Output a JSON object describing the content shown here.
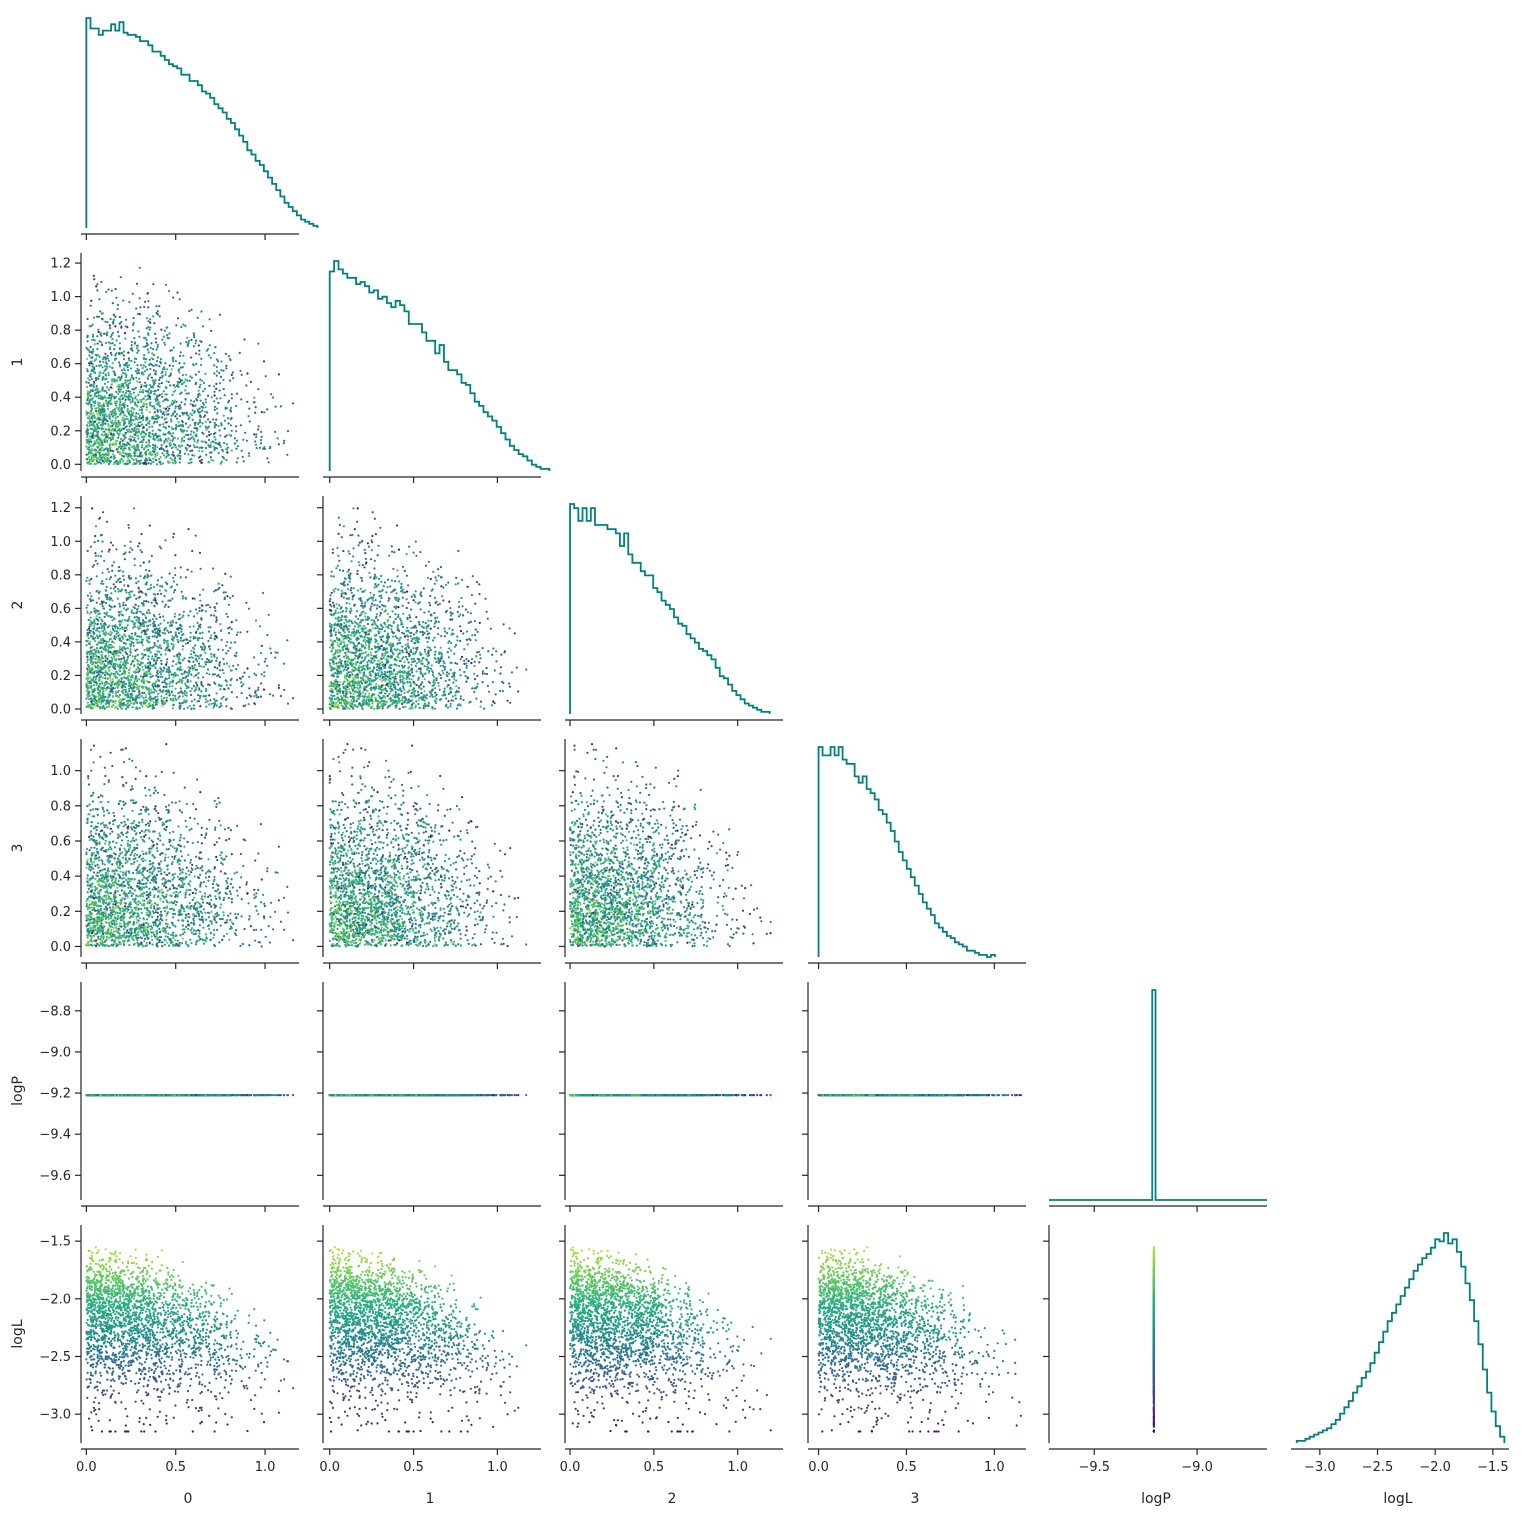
{
  "chart_data": {
    "type": "scatter",
    "layout": "corner",
    "variables": [
      "0",
      "1",
      "2",
      "3",
      "logP",
      "logL"
    ],
    "axis_labels": [
      "0",
      "1",
      "2",
      "3",
      "logP",
      "logL"
    ],
    "diag_color": "#008080",
    "colormap": "viridis",
    "color_variable": "logL",
    "sample_count": 2200,
    "ranges": {
      "0": [
        -0.03,
        1.19
      ],
      "1": [
        -0.04,
        1.26
      ],
      "2": [
        -0.03,
        1.27
      ],
      "3": [
        -0.06,
        1.18
      ],
      "logP": [
        -9.72,
        -8.66
      ],
      "logL": [
        -3.25,
        -1.36
      ]
    },
    "ticks": {
      "0": [
        0.0,
        0.5,
        1.0
      ],
      "1": [
        0.0,
        0.5,
        1.0
      ],
      "2": [
        0.0,
        0.5,
        1.0
      ],
      "3": [
        0.0,
        0.5,
        1.0
      ],
      "logP": [
        -9.5,
        -9.0
      ],
      "logL": [
        -3.0,
        -2.5,
        -2.0,
        -1.5
      ]
    },
    "tick_labels": {
      "0": [
        "0.0",
        "0.5",
        "1.0"
      ],
      "1": [
        "0.0",
        "0.5",
        "1.0"
      ],
      "2": [
        "0.0",
        "0.5",
        "1.0"
      ],
      "3": [
        "0.0",
        "0.5",
        "1.0"
      ],
      "logP": [
        "−9.5",
        "−9.0"
      ],
      "logL": [
        "−3.0",
        "−2.5",
        "−2.0",
        "−1.5"
      ]
    },
    "y_ticks": {
      "1": [
        0.0,
        0.2,
        0.4,
        0.6,
        0.8,
        1.0,
        1.2
      ],
      "2": [
        0.0,
        0.2,
        0.4,
        0.6,
        0.8,
        1.0,
        1.2
      ],
      "3": [
        0.0,
        0.2,
        0.4,
        0.6,
        0.8,
        1.0
      ],
      "logP": [
        -9.6,
        -9.4,
        -9.2,
        -9.0,
        -8.8
      ],
      "logL": [
        -3.0,
        -2.5,
        -2.0,
        -1.5
      ]
    },
    "y_tick_labels": {
      "1": [
        "0.0",
        "0.2",
        "0.4",
        "0.6",
        "0.8",
        "1.0",
        "1.2"
      ],
      "2": [
        "0.0",
        "0.2",
        "0.4",
        "0.6",
        "0.8",
        "1.0",
        "1.2"
      ],
      "3": [
        "0.0",
        "0.2",
        "0.4",
        "0.6",
        "0.8",
        "1.0"
      ],
      "logP": [
        "−9.6",
        "−9.4",
        "−9.2",
        "−9.0",
        "−8.8"
      ],
      "logL": [
        "−3.0",
        "−2.5",
        "−2.0",
        "−1.5"
      ]
    },
    "logP_value": -9.21,
    "histograms": {
      "0": {
        "bin_start": 0.0,
        "bin_width": 0.0231,
        "counts": [
          100,
          95,
          95,
          92,
          94,
          94,
          97,
          94,
          98,
          93,
          92,
          92,
          91,
          89,
          89,
          87,
          84,
          84,
          82,
          80,
          78,
          77,
          76,
          73,
          73,
          70,
          70,
          68,
          65,
          64,
          62,
          59,
          57,
          55,
          52,
          50,
          47,
          44,
          41,
          37,
          35,
          32,
          30,
          27,
          24,
          21,
          18,
          15,
          12,
          10,
          8,
          6,
          4,
          3,
          2,
          1
        ]
      },
      "1": {
        "bin_start": 0.0,
        "bin_width": 0.0262,
        "counts": [
          95,
          100,
          96,
          94,
          92,
          92,
          89,
          90,
          88,
          85,
          86,
          82,
          83,
          80,
          78,
          81,
          79,
          76,
          70,
          70,
          70,
          66,
          62,
          62,
          56,
          60,
          52,
          48,
          48,
          46,
          42,
          41,
          37,
          33,
          31,
          28,
          26,
          24,
          21,
          18,
          15,
          12,
          10,
          8,
          7,
          5,
          3,
          2,
          1,
          1
        ]
      },
      "2": {
        "bin_start": 0.0,
        "bin_width": 0.0248,
        "counts": [
          100,
          98,
          92,
          98,
          92,
          98,
          90,
          90,
          90,
          88,
          88,
          86,
          80,
          86,
          76,
          72,
          72,
          68,
          66,
          66,
          60,
          58,
          54,
          52,
          50,
          46,
          43,
          42,
          38,
          36,
          34,
          31,
          30,
          28,
          26,
          22,
          18,
          17,
          14,
          11,
          9,
          7,
          5,
          4,
          3,
          2,
          1,
          1
        ]
      },
      "3": {
        "bin_start": 0.0,
        "bin_width": 0.0228,
        "counts": [
          100,
          96,
          96,
          100,
          96,
          100,
          94,
          92,
          92,
          86,
          83,
          86,
          80,
          78,
          75,
          70,
          68,
          64,
          60,
          55,
          50,
          46,
          42,
          38,
          34,
          30,
          26,
          23,
          20,
          16,
          14,
          12,
          10,
          9,
          7,
          6,
          5,
          3,
          3,
          2,
          1,
          1,
          0,
          1
        ]
      },
      "logP": {
        "center": -9.21,
        "bin_width": 0.016,
        "counts": [
          1
        ]
      },
      "logL": {
        "bin_start": -3.2,
        "bin_width": 0.0375,
        "counts": [
          1,
          1,
          2,
          3,
          4,
          5,
          6,
          7,
          9,
          11,
          14,
          17,
          20,
          24,
          27,
          31,
          34,
          38,
          43,
          48,
          53,
          58,
          62,
          66,
          70,
          74,
          78,
          82,
          85,
          88,
          90,
          93,
          97,
          96,
          100,
          95,
          97,
          91,
          84,
          76,
          68,
          58,
          47,
          35,
          24,
          15,
          8,
          3
        ]
      }
    }
  }
}
